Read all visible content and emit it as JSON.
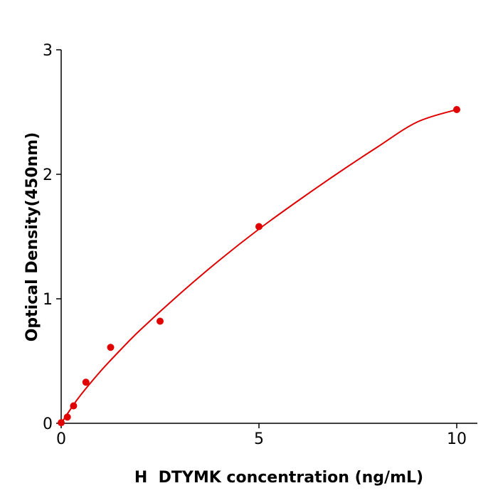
{
  "chart_data": {
    "type": "scatter",
    "xlabel": "H  DTYMK concentration (ng/mL)",
    "ylabel": "Optical Density(450nm)",
    "xlim": [
      0,
      10.5
    ],
    "ylim": [
      0,
      3
    ],
    "xticks": [
      0,
      5,
      10
    ],
    "yticks": [
      0,
      1,
      2,
      3
    ],
    "grid": false,
    "color": "#e00000",
    "points": [
      {
        "x": 0,
        "y": 0.005
      },
      {
        "x": 0.156,
        "y": 0.05
      },
      {
        "x": 0.313,
        "y": 0.14
      },
      {
        "x": 0.625,
        "y": 0.33
      },
      {
        "x": 1.25,
        "y": 0.61
      },
      {
        "x": 2.5,
        "y": 0.82
      },
      {
        "x": 5,
        "y": 1.58
      },
      {
        "x": 10,
        "y": 2.52
      }
    ],
    "curve": [
      {
        "x": 0,
        "y": 0
      },
      {
        "x": 0.25,
        "y": 0.12
      },
      {
        "x": 0.5,
        "y": 0.23
      },
      {
        "x": 1,
        "y": 0.42
      },
      {
        "x": 1.5,
        "y": 0.59
      },
      {
        "x": 2,
        "y": 0.75
      },
      {
        "x": 3,
        "y": 1.04
      },
      {
        "x": 4,
        "y": 1.31
      },
      {
        "x": 5,
        "y": 1.56
      },
      {
        "x": 6,
        "y": 1.79
      },
      {
        "x": 7,
        "y": 2.01
      },
      {
        "x": 8,
        "y": 2.22
      },
      {
        "x": 9,
        "y": 2.42
      },
      {
        "x": 10,
        "y": 2.52
      }
    ]
  }
}
